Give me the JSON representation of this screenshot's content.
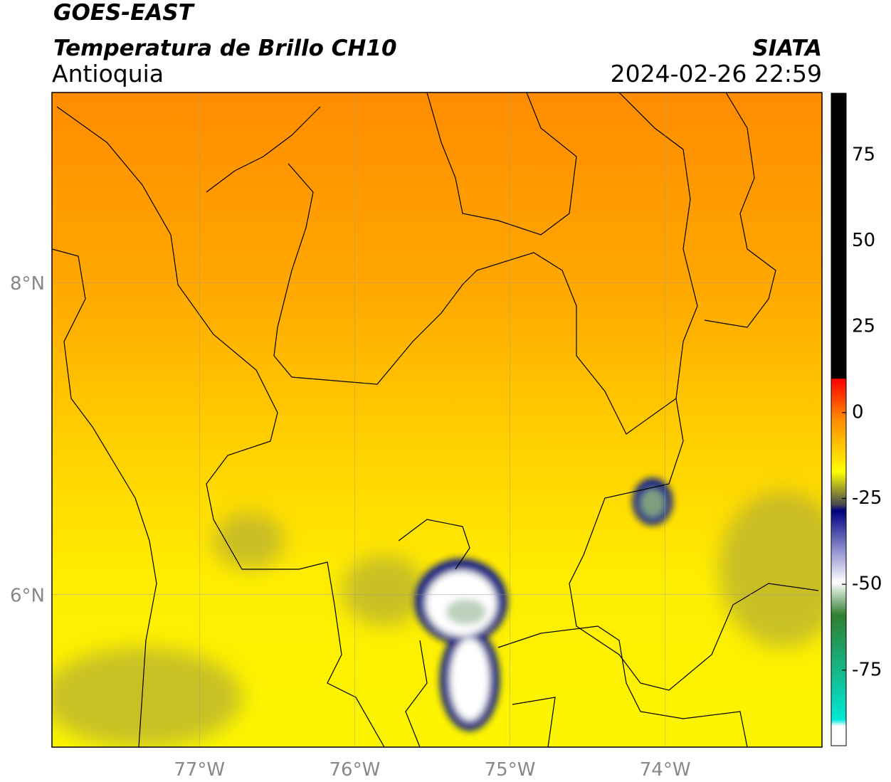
{
  "header": {
    "title": "GOES-EAST",
    "subtitle": "Temperatura de Brillo CH10",
    "region": "Antioquia",
    "source": "SIATA",
    "datetime": "2024-02-26 22:59"
  },
  "map": {
    "xlim": [
      -77.95,
      -72.99
    ],
    "ylim": [
      5.02,
      9.22
    ],
    "xticks": [
      {
        "value": -77,
        "label": "77°W"
      },
      {
        "value": -76,
        "label": "76°W"
      },
      {
        "value": -75,
        "label": "75°W"
      },
      {
        "value": -74,
        "label": "74°W"
      }
    ],
    "yticks": [
      {
        "value": 6,
        "label": "6°N"
      },
      {
        "value": 8,
        "label": "8°N"
      }
    ],
    "grid": true
  },
  "colorbar": {
    "lim": [
      -97,
      93
    ],
    "ticks": [
      75,
      50,
      25,
      0,
      -25,
      -50,
      -75
    ]
  }
}
